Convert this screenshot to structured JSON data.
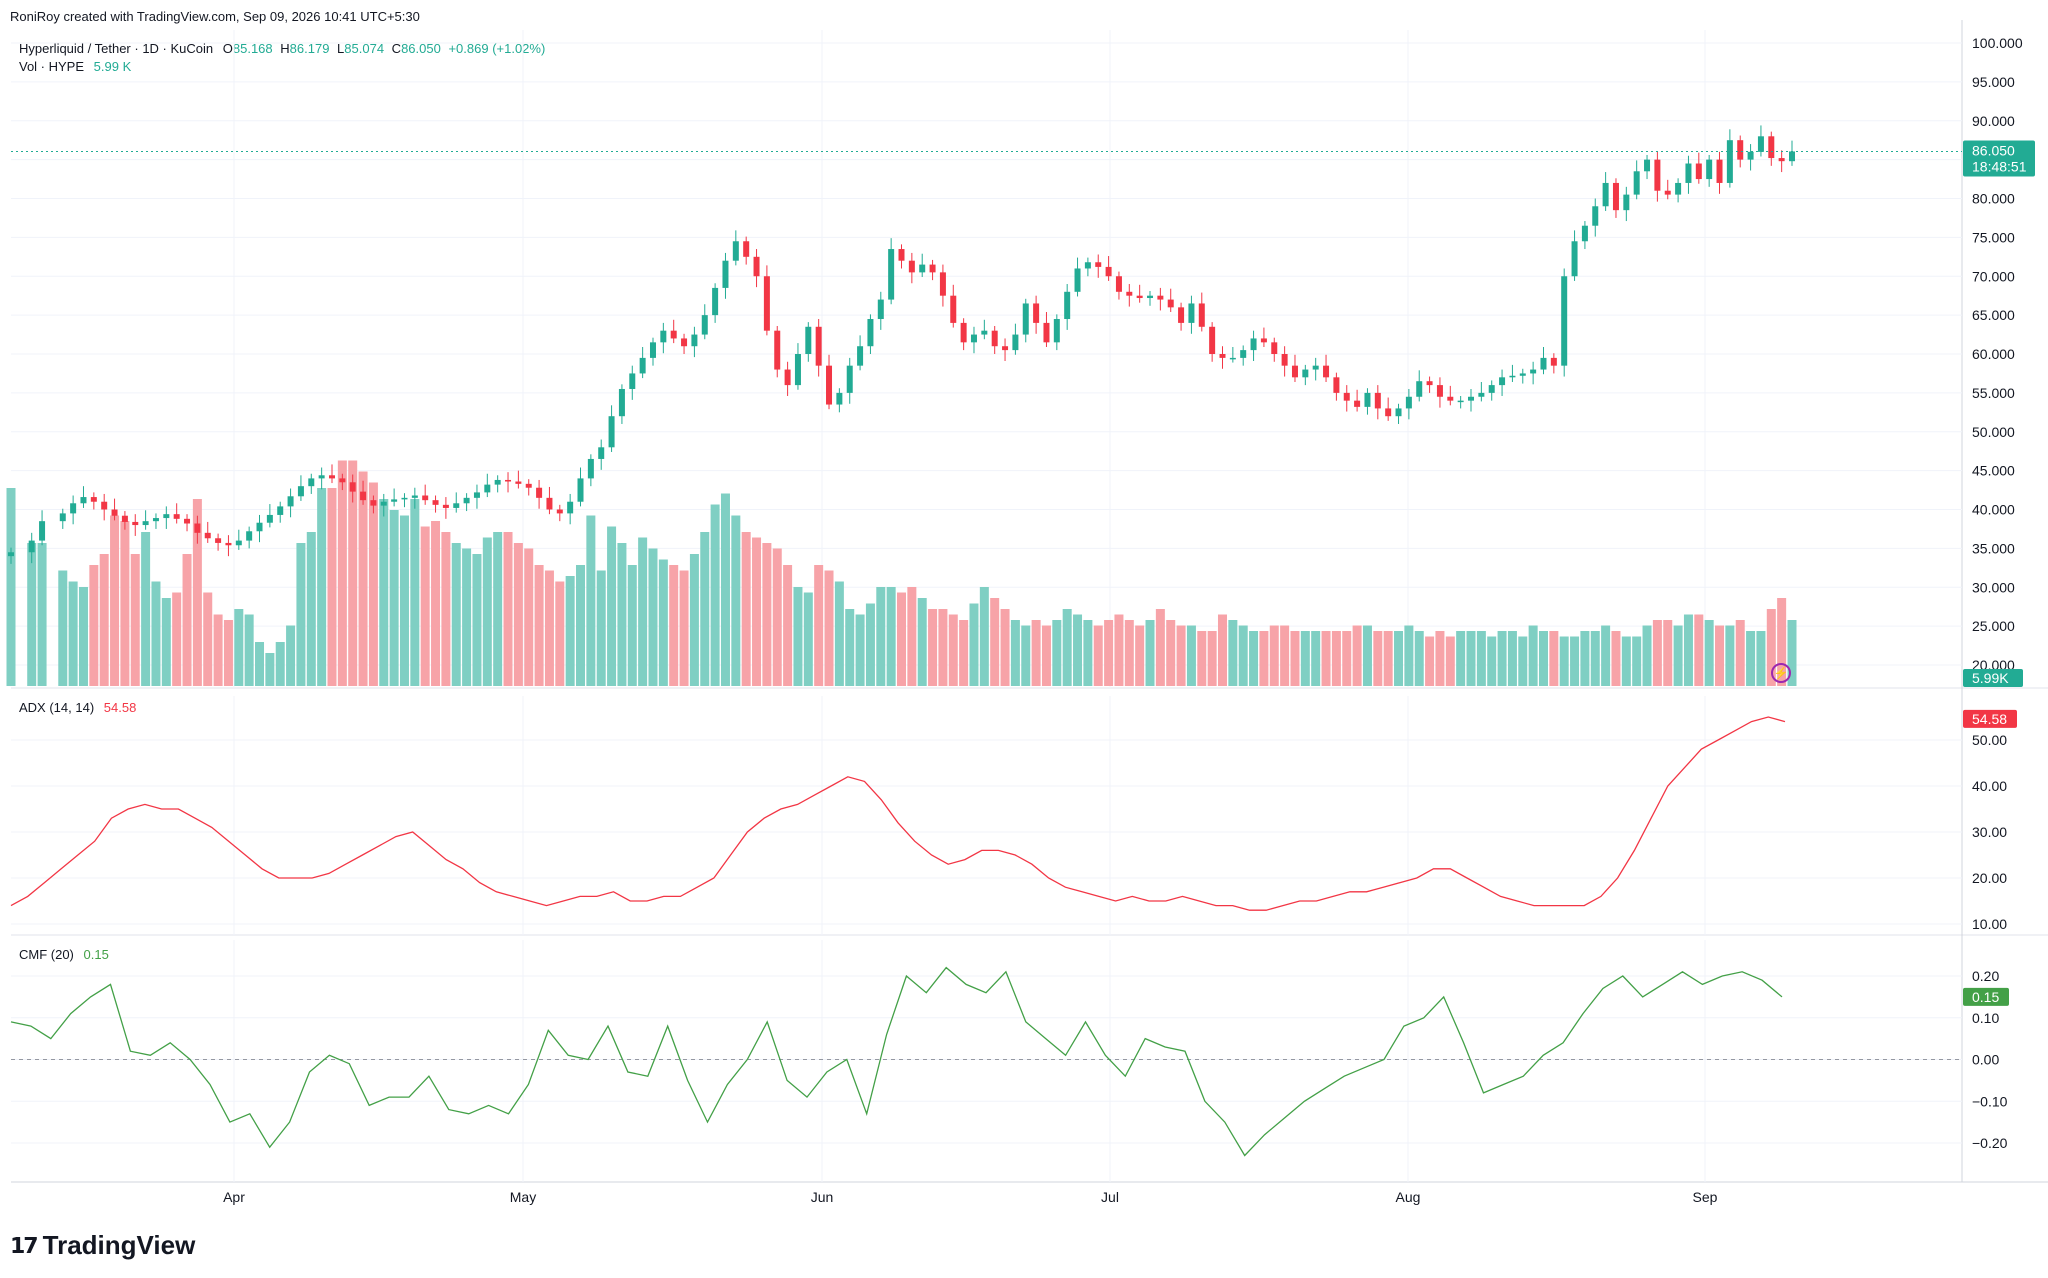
{
  "header": {
    "credit": "RoniRoy created with TradingView.com, Sep 09, 2026 10:41 UTC+5:30"
  },
  "main_legend": {
    "symbol": "Hyperliquid / Tether · 1D · KuCoin",
    "o_label": "O",
    "o_value": "85.168",
    "h_label": "H",
    "h_value": "86.179",
    "l_label": "L",
    "l_value": "85.074",
    "c_label": "C",
    "c_value": "86.050",
    "change": "+0.869 (+1.02%)",
    "vol_label": "Vol · HYPE",
    "vol_value": "5.99 K"
  },
  "adx_legend": {
    "label": "ADX (14, 14)",
    "value": "54.58"
  },
  "cmf_legend": {
    "label": "CMF (20)",
    "value": "0.15"
  },
  "price_scale": {
    "ticks": [
      "100.000",
      "95.000",
      "90.000",
      "85.000",
      "80.000",
      "75.000",
      "70.000",
      "65.000",
      "60.000",
      "55.000",
      "50.000",
      "45.000",
      "40.000",
      "35.000",
      "30.000",
      "25.000",
      "20.000"
    ],
    "last_price_label": "86.050",
    "countdown": "18:48:51",
    "volume_label": "5.99K"
  },
  "adx_scale": {
    "ticks": [
      "50.00",
      "40.00",
      "30.00",
      "20.00",
      "10.00"
    ],
    "last_label": "54.58"
  },
  "cmf_scale": {
    "ticks": [
      "0.20",
      "0.10",
      "0.00",
      "−0.10",
      "−0.20"
    ],
    "last_label": "0.15"
  },
  "time_axis": {
    "labels": [
      "Apr",
      "May",
      "Jun",
      "Jul",
      "Aug",
      "Sep"
    ]
  },
  "branding": {
    "logo_text": "TradingView"
  },
  "colors": {
    "up": "#22ab94",
    "down": "#f23645",
    "vol_up": "#7fcfc3",
    "vol_down": "#f7a3a8",
    "adx": "#f23645",
    "cmf": "#43a047",
    "price_line": "#22ab94"
  },
  "chart_data": [
    {
      "type": "candlestick",
      "title": "Hyperliquid / Tether · 1D · KuCoin",
      "ylim": [
        34,
        100
      ],
      "x_range": [
        "Mar 9",
        "Sep 9"
      ],
      "price_path": [
        [
          34.5,
          35
        ],
        [
          36.0,
          37
        ],
        [
          38.5,
          38
        ],
        [
          39.5,
          40
        ],
        [
          40.8,
          41
        ],
        [
          41.6,
          42
        ],
        [
          41.0,
          43
        ],
        [
          40.0,
          44
        ],
        [
          39.2,
          45
        ],
        [
          38.4,
          46
        ],
        [
          38.0,
          47
        ],
        [
          38.5,
          48
        ],
        [
          38.9,
          49
        ],
        [
          39.4,
          50
        ],
        [
          38.8,
          51
        ],
        [
          38.2,
          52
        ],
        [
          37.0,
          53
        ],
        [
          36.3,
          54
        ],
        [
          35.7,
          55
        ],
        [
          35.4,
          56
        ],
        [
          36.0,
          57
        ],
        [
          37.2,
          58
        ],
        [
          38.3,
          59
        ],
        [
          39.3,
          60
        ],
        [
          40.4,
          61
        ],
        [
          41.7,
          62
        ],
        [
          43.0,
          63
        ],
        [
          44.0,
          64
        ],
        [
          44.4,
          65
        ],
        [
          44.0,
          66
        ],
        [
          43.5,
          67
        ],
        [
          42.3,
          68
        ],
        [
          41.2,
          69
        ],
        [
          40.5,
          70
        ],
        [
          41.0,
          71
        ],
        [
          41.3,
          72
        ],
        [
          41.5,
          73
        ],
        [
          41.8,
          74
        ],
        [
          41.2,
          75
        ],
        [
          40.6,
          76
        ],
        [
          40.2,
          77
        ],
        [
          40.8,
          78
        ],
        [
          41.5,
          79
        ],
        [
          42.2,
          80
        ],
        [
          43.2,
          81
        ],
        [
          43.8,
          82
        ],
        [
          43.6,
          83
        ],
        [
          43.3,
          84
        ],
        [
          42.8,
          85
        ],
        [
          41.5,
          86
        ],
        [
          40.0,
          87
        ],
        [
          39.5,
          88
        ],
        [
          41.0,
          89
        ],
        [
          44.0,
          90
        ],
        [
          46.5,
          91
        ],
        [
          48.0,
          92
        ],
        [
          52.0,
          93
        ],
        [
          55.5,
          94
        ],
        [
          57.5,
          95
        ],
        [
          59.5,
          96
        ],
        [
          61.5,
          97
        ],
        [
          63.0,
          98
        ],
        [
          62.0,
          99
        ],
        [
          61.0,
          100
        ],
        [
          62.5,
          101
        ],
        [
          65.0,
          102
        ],
        [
          68.5,
          103
        ],
        [
          72.0,
          104
        ],
        [
          74.5,
          105
        ],
        [
          72.5,
          106
        ],
        [
          70.0,
          107
        ],
        [
          63.0,
          108
        ],
        [
          58.0,
          109
        ],
        [
          56.0,
          110
        ],
        [
          60.0,
          111
        ],
        [
          63.5,
          112
        ],
        [
          58.5,
          113
        ],
        [
          53.5,
          114
        ],
        [
          55.0,
          115
        ],
        [
          58.5,
          116
        ],
        [
          61.0,
          117
        ],
        [
          64.5,
          118
        ],
        [
          67.0,
          119
        ],
        [
          73.5,
          120
        ],
        [
          72.0,
          121
        ],
        [
          70.5,
          122
        ],
        [
          71.5,
          123
        ],
        [
          70.5,
          124
        ],
        [
          67.5,
          125
        ],
        [
          64.0,
          126
        ],
        [
          61.5,
          127
        ],
        [
          62.5,
          128
        ],
        [
          63.0,
          129
        ],
        [
          61.0,
          130
        ],
        [
          60.5,
          131
        ],
        [
          62.5,
          132
        ],
        [
          66.5,
          133
        ],
        [
          64.0,
          134
        ],
        [
          61.5,
          135
        ],
        [
          64.5,
          136
        ],
        [
          68.0,
          137
        ],
        [
          71.0,
          138
        ],
        [
          71.8,
          139
        ],
        [
          71.2,
          140
        ],
        [
          70.0,
          141
        ],
        [
          68.0,
          142
        ],
        [
          67.5,
          143
        ],
        [
          67.2,
          144
        ],
        [
          67.5,
          145
        ],
        [
          67.0,
          146
        ],
        [
          66.0,
          147
        ],
        [
          64.0,
          148
        ],
        [
          66.5,
          149
        ],
        [
          63.5,
          150
        ],
        [
          60.0,
          151
        ],
        [
          59.5,
          152
        ],
        [
          59.5,
          153
        ],
        [
          60.5,
          154
        ],
        [
          62.0,
          155
        ],
        [
          61.5,
          156
        ],
        [
          60.0,
          157
        ],
        [
          58.5,
          158
        ],
        [
          57.0,
          159
        ],
        [
          58.0,
          160
        ],
        [
          58.5,
          161
        ],
        [
          57.0,
          162
        ],
        [
          55.0,
          163
        ],
        [
          54.0,
          164
        ],
        [
          53.2,
          165
        ],
        [
          55.0,
          166
        ],
        [
          53.0,
          167
        ],
        [
          52.0,
          168
        ],
        [
          53.0,
          169
        ],
        [
          54.5,
          170
        ],
        [
          56.5,
          171
        ],
        [
          56.0,
          172
        ],
        [
          54.5,
          173
        ],
        [
          54.0,
          174
        ],
        [
          54.0,
          175
        ],
        [
          54.5,
          176
        ],
        [
          55.0,
          177
        ],
        [
          56.0,
          178
        ],
        [
          57.0,
          179
        ],
        [
          57.2,
          180
        ],
        [
          57.5,
          181
        ],
        [
          58.0,
          182
        ],
        [
          59.5,
          183
        ],
        [
          58.5,
          184
        ],
        [
          70.0,
          185
        ],
        [
          74.5,
          186
        ],
        [
          76.5,
          187
        ],
        [
          79.0,
          188
        ],
        [
          82.0,
          189
        ],
        [
          78.5,
          190
        ],
        [
          80.5,
          191
        ],
        [
          83.5,
          192
        ],
        [
          85.0,
          193
        ],
        [
          81.0,
          194
        ],
        [
          80.5,
          195
        ],
        [
          82.0,
          196
        ],
        [
          84.5,
          197
        ],
        [
          82.5,
          198
        ],
        [
          85.0,
          199
        ],
        [
          82.0,
          200
        ],
        [
          87.5,
          201
        ],
        [
          85.0,
          202
        ],
        [
          86.0,
          203
        ],
        [
          88.0,
          204
        ],
        [
          85.2,
          205
        ],
        [
          84.8,
          206
        ],
        [
          86.05,
          207
        ]
      ],
      "volume_k": [
        36,
        26,
        26,
        21,
        19,
        18,
        22,
        24,
        31,
        30,
        24,
        28,
        19,
        16,
        17,
        24,
        34,
        17,
        13,
        12,
        14,
        13,
        8,
        6,
        8,
        11,
        26,
        28,
        36,
        36,
        41,
        41,
        39,
        37,
        34,
        32,
        31,
        34,
        29,
        30,
        28,
        26,
        25,
        24,
        27,
        28,
        28,
        26,
        25,
        22,
        21,
        19,
        20,
        22,
        31,
        21,
        29,
        26,
        22,
        27,
        25,
        23,
        22,
        21,
        24,
        28,
        33,
        35,
        31,
        28,
        27,
        26,
        25,
        22,
        18,
        17,
        22,
        21,
        19,
        14,
        13,
        15,
        18,
        18,
        17,
        18,
        16,
        14,
        14,
        13,
        12,
        15,
        18,
        16,
        14,
        12,
        11,
        12,
        11,
        12,
        14,
        13,
        12,
        11,
        12,
        13,
        12,
        11,
        12,
        14,
        12,
        11,
        11,
        10,
        10,
        13,
        12,
        11,
        10,
        10,
        11,
        11,
        10,
        10,
        10,
        10,
        10,
        10,
        11,
        11,
        10,
        10,
        10,
        11,
        10,
        9,
        10,
        9,
        10,
        10,
        10,
        9,
        10,
        10,
        9,
        11,
        10,
        10,
        9,
        9,
        10,
        10,
        11,
        10,
        9,
        9,
        11,
        12,
        12,
        11,
        13,
        13,
        12,
        11,
        11,
        12,
        10,
        10,
        14,
        16,
        12,
        10,
        10,
        9,
        12,
        11,
        12,
        12,
        10,
        11,
        11,
        10,
        10,
        11,
        10,
        10,
        10,
        9,
        10,
        9,
        10,
        9,
        9,
        10,
        11,
        11,
        9,
        10,
        10,
        11
      ]
    },
    {
      "type": "line",
      "title": "ADX (14, 14)",
      "ylim": [
        6,
        58
      ],
      "values": [
        14,
        16,
        19,
        22,
        25,
        28,
        33,
        35,
        36,
        35,
        35,
        33,
        31,
        28,
        25,
        22,
        20,
        20,
        20,
        21,
        23,
        25,
        27,
        29,
        30,
        27,
        24,
        22,
        19,
        17,
        16,
        15,
        14,
        15,
        16,
        16,
        17,
        15,
        15,
        16,
        16,
        18,
        20,
        25,
        30,
        33,
        35,
        36,
        38,
        40,
        42,
        41,
        37,
        32,
        28,
        25,
        23,
        24,
        26,
        26,
        25,
        23,
        20,
        18,
        17,
        16,
        15,
        16,
        15,
        15,
        16,
        15,
        14,
        14,
        13,
        13,
        14,
        15,
        15,
        16,
        17,
        17,
        18,
        19,
        20,
        22,
        22,
        20,
        18,
        16,
        15,
        14,
        14,
        14,
        14,
        16,
        20,
        26,
        33,
        40,
        44,
        48,
        50,
        52,
        54,
        55,
        54
      ],
      "last": 54.58
    },
    {
      "type": "line",
      "title": "CMF (20)",
      "ylim": [
        -0.29,
        0.25
      ],
      "values": [
        0.09,
        0.08,
        0.05,
        0.11,
        0.15,
        0.18,
        0.02,
        0.01,
        0.04,
        0.0,
        -0.06,
        -0.15,
        -0.13,
        -0.21,
        -0.15,
        -0.03,
        0.01,
        -0.01,
        -0.11,
        -0.09,
        -0.09,
        -0.04,
        -0.12,
        -0.13,
        -0.11,
        -0.13,
        -0.06,
        0.07,
        0.01,
        0.0,
        0.08,
        -0.03,
        -0.04,
        0.08,
        -0.05,
        -0.15,
        -0.06,
        0.0,
        0.09,
        -0.05,
        -0.09,
        -0.03,
        0.0,
        -0.13,
        0.06,
        0.2,
        0.16,
        0.22,
        0.18,
        0.16,
        0.21,
        0.09,
        0.05,
        0.01,
        0.09,
        0.01,
        -0.04,
        0.05,
        0.03,
        0.02,
        -0.1,
        -0.15,
        -0.23,
        -0.18,
        -0.14,
        -0.1,
        -0.07,
        -0.04,
        -0.02,
        0.0,
        0.08,
        0.1,
        0.15,
        0.04,
        -0.08,
        -0.06,
        -0.04,
        0.01,
        0.04,
        0.11,
        0.17,
        0.2,
        0.15,
        0.18,
        0.21,
        0.18,
        0.2,
        0.21,
        0.19,
        0.15
      ],
      "last": 0.15
    }
  ]
}
